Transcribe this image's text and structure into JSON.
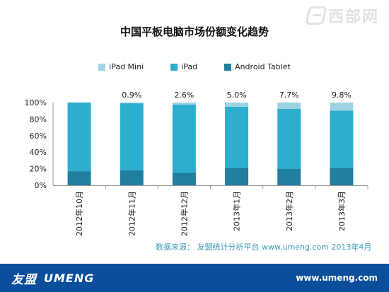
{
  "watermark": {
    "text": "西部网"
  },
  "footer": {
    "brand_cn": "友盟",
    "brand_en": "UMENG",
    "url": "www.umeng.com"
  },
  "chart_data": {
    "type": "bar",
    "stacked": true,
    "title": "中国平板电脑市场份额变化趋势",
    "categories": [
      "2012年10月",
      "2012年11月",
      "2012年12月",
      "2013年1月",
      "2013年2月",
      "2013年3月"
    ],
    "series": [
      {
        "name": "Android Tablet",
        "color": "#1f7f9c",
        "values": [
          17,
          18,
          15,
          21,
          20,
          21
        ]
      },
      {
        "name": "iPad",
        "color": "#2eaecf",
        "values": [
          83,
          81.1,
          82.4,
          74,
          72.3,
          69.2
        ]
      },
      {
        "name": "iPad Mini",
        "color": "#9fd3e3",
        "values": [
          0,
          0.9,
          2.6,
          5.0,
          7.7,
          9.8
        ]
      }
    ],
    "data_labels": [
      "",
      "0.9%",
      "2.6%",
      "5.0%",
      "7.7%",
      "9.8%"
    ],
    "y_ticks": [
      "0%",
      "20%",
      "40%",
      "60%",
      "80%",
      "100%"
    ],
    "ylim": [
      0,
      100
    ],
    "legend_position": "top",
    "grid": false,
    "source": "数据来源： 友盟统计分析平台 www.umeng.com 2013年4月"
  }
}
